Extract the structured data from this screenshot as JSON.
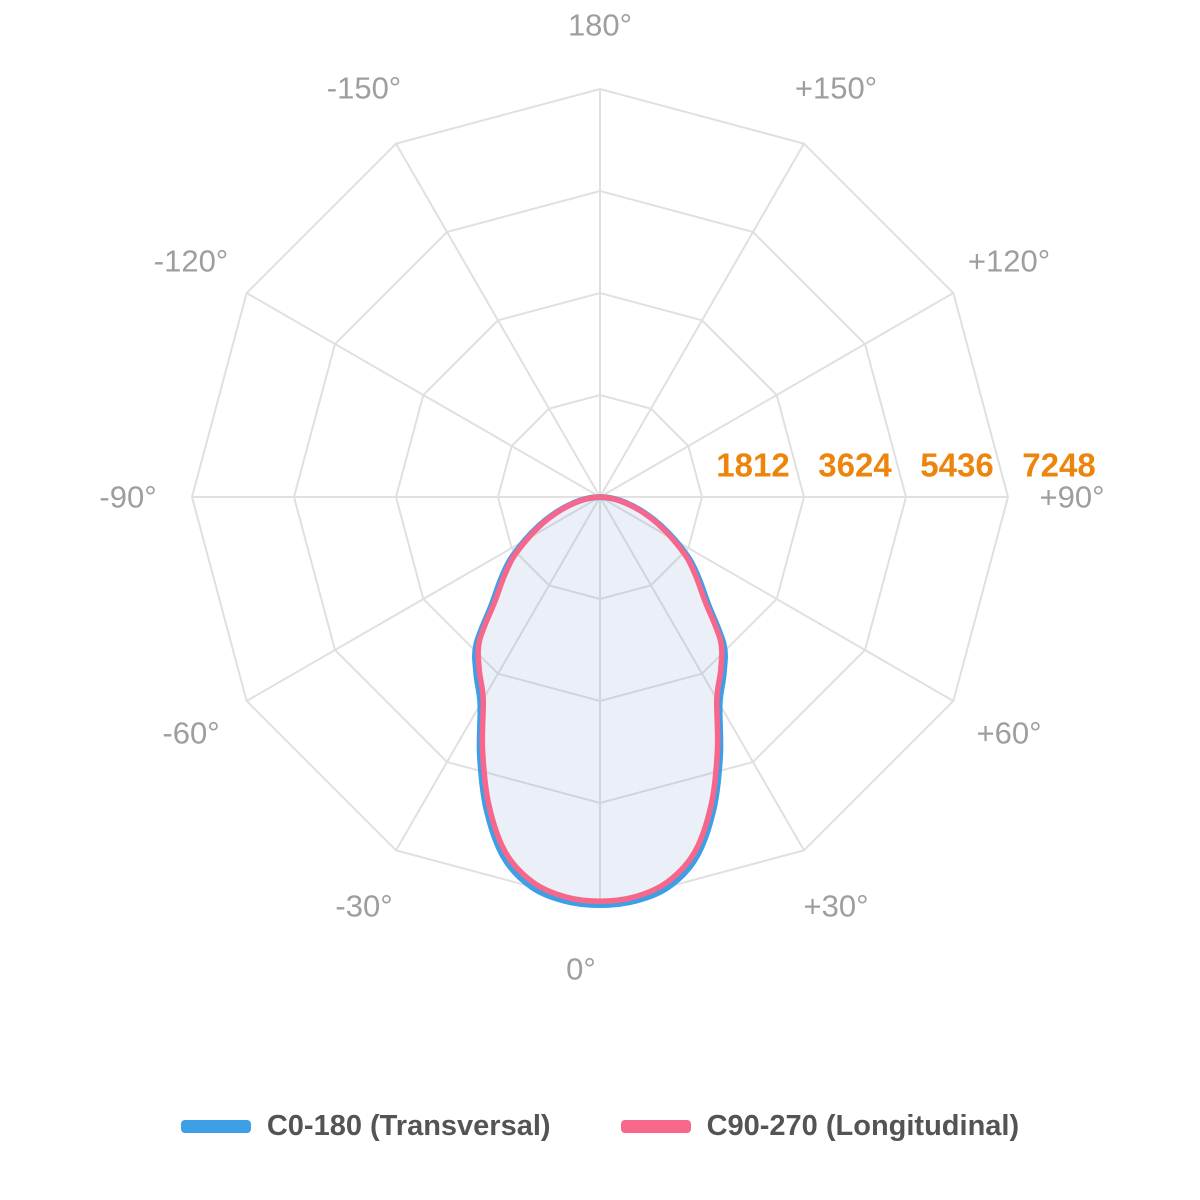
{
  "chart_data": {
    "type": "polar",
    "subtype": "photometric-intensity-distribution",
    "title": "",
    "units": "cd",
    "radial_axis": {
      "min": 0,
      "max": 7248,
      "ticks": [
        1812,
        3624,
        5436,
        7248
      ],
      "tick_color": "#ED840C"
    },
    "angle_axis": {
      "step_deg": 30,
      "labels": [
        {
          "text": "180°",
          "angle": 180
        },
        {
          "text": "-150°",
          "angle": -150
        },
        {
          "text": "+150°",
          "angle": 150
        },
        {
          "text": "-120°",
          "angle": -120
        },
        {
          "text": "+120°",
          "angle": 120
        },
        {
          "text": "-90°",
          "angle": -90
        },
        {
          "text": "+90°",
          "angle": 90
        },
        {
          "text": "-60°",
          "angle": -60
        },
        {
          "text": "+60°",
          "angle": 60
        },
        {
          "text": "-30°",
          "angle": -30
        },
        {
          "text": "+30°",
          "angle": 30
        },
        {
          "text": "0°",
          "angle": 0,
          "dx": -19
        }
      ]
    },
    "grid": {
      "rings": 4,
      "spokes": 12,
      "shape": "polygon",
      "color": "#E0E0E0"
    },
    "series": [
      {
        "name": "C0-180 (Transversal)",
        "color": "#3D9FE6",
        "fill": "rgba(54,162,235,0.10)",
        "stroke_width": 6,
        "gamma_deg": [
          0,
          5,
          10,
          15,
          20,
          25,
          30,
          35,
          40,
          45,
          50,
          55,
          60,
          65,
          70,
          75,
          80,
          85,
          90
        ],
        "candela": [
          7248,
          7200,
          7030,
          6620,
          5900,
          5050,
          4250,
          3830,
          3420,
          2730,
          2310,
          1950,
          1540,
          1180,
          860,
          580,
          350,
          150,
          0
        ]
      },
      {
        "name": "C90-270 (Longitudinal)",
        "color": "#F7678C",
        "fill": "rgba(255,99,132,0.045)",
        "stroke_width": 5.5,
        "gamma_deg": [
          0,
          5,
          10,
          15,
          20,
          25,
          30,
          35,
          40,
          45,
          50,
          55,
          60,
          65,
          70,
          75,
          80,
          85,
          90
        ],
        "candela": [
          7180,
          7130,
          6940,
          6520,
          5790,
          4940,
          4150,
          3740,
          3330,
          2650,
          2240,
          1890,
          1490,
          1140,
          830,
          550,
          330,
          140,
          0
        ]
      }
    ],
    "legend_position": "bottom"
  },
  "legend": {
    "items": [
      {
        "label": "C0-180 (Transversal)",
        "color": "#3D9FE6"
      },
      {
        "label": "C90-270 (Longitudinal)",
        "color": "#F7678C"
      }
    ]
  },
  "colors": {
    "background": "#FFFFFF",
    "grid": "#E0E0E0",
    "angle_label": "#9E9E9E",
    "radial_tick": "#ED840C",
    "legend_text": "#545456"
  }
}
